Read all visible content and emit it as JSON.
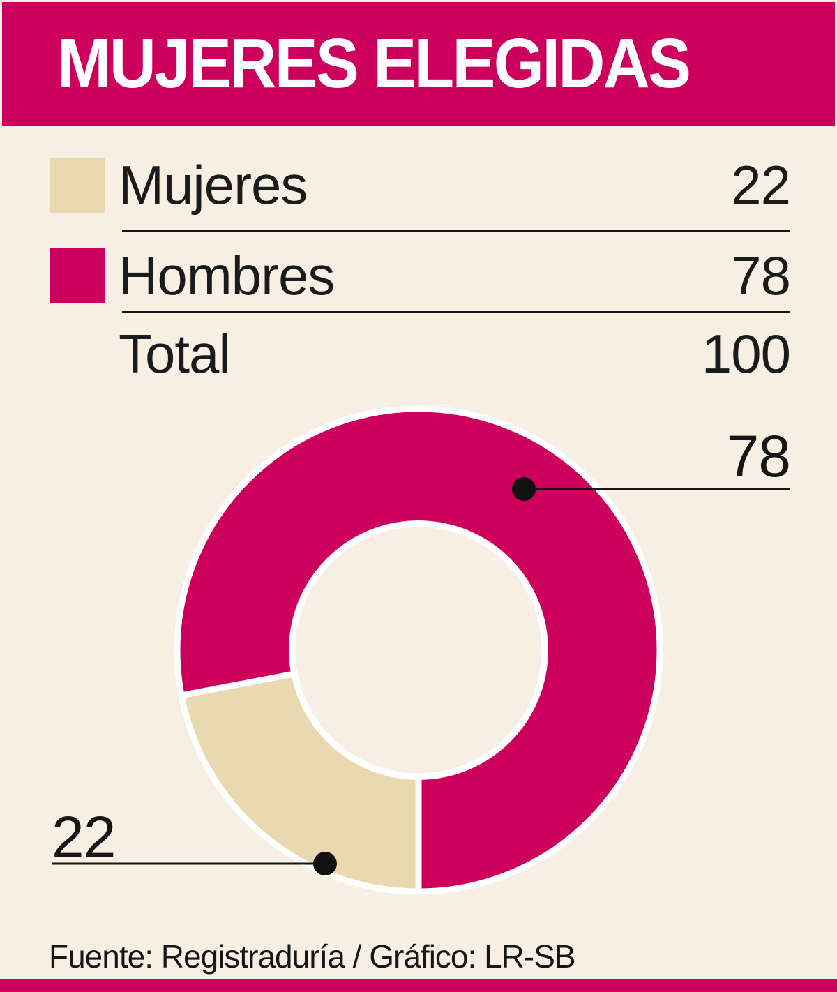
{
  "title": "MUJERES ELEGIDAS",
  "colors": {
    "accent_magenta": "#cc005c",
    "tan": "#e9d8b0",
    "background": "#f8efe4",
    "text_dark": "#161616",
    "white": "#ffffff"
  },
  "legend": {
    "rows": [
      {
        "label": "Mujeres",
        "value": 22,
        "swatch": "#e9d8b0"
      },
      {
        "label": "Hombres",
        "value": 78,
        "swatch": "#cc005c"
      },
      {
        "label": "Total",
        "value": 100,
        "swatch": ""
      }
    ]
  },
  "chart_data": {
    "type": "pie",
    "donut": true,
    "title": "MUJERES ELEGIDAS",
    "categories": [
      "Mujeres",
      "Hombres"
    ],
    "values": [
      22,
      78
    ],
    "colors": [
      "#e9d8b0",
      "#cc005c"
    ],
    "total": 100,
    "start_angle_clockwise_from_top_deg": 180,
    "callout_labels": [
      "22",
      "78"
    ],
    "legend_position": "top"
  },
  "footer": {
    "source": "Fuente: Registraduría / Gráfico: LR-SB"
  }
}
